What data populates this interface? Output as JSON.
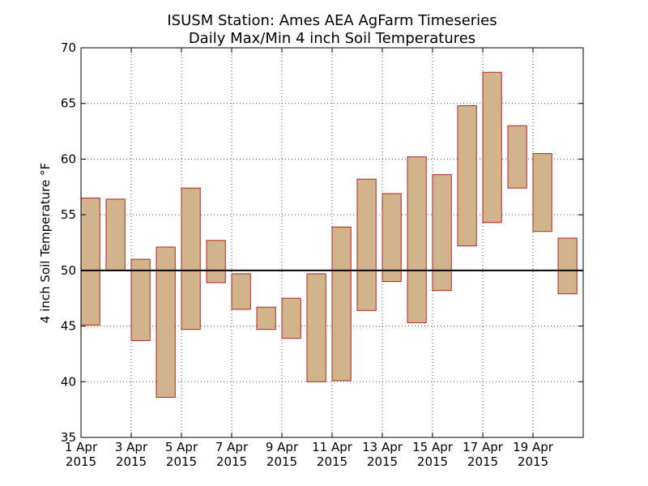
{
  "chart_data": {
    "type": "bar",
    "title_lines": [
      "ISUSM Station: Ames AEA AgFarm Timeseries",
      "Daily Max/Min 4 inch Soil Temperatures"
    ],
    "ylabel": "4 inch Soil Temperature °F",
    "xlabel": "",
    "ylim": [
      35,
      70
    ],
    "yticks": [
      35,
      40,
      45,
      50,
      55,
      60,
      65,
      70
    ],
    "xlim": [
      0,
      20
    ],
    "xticks": [
      {
        "x": 0,
        "line1": "1 Apr",
        "line2": "2015"
      },
      {
        "x": 2,
        "line1": "3 Apr",
        "line2": "2015"
      },
      {
        "x": 4,
        "line1": "5 Apr",
        "line2": "2015"
      },
      {
        "x": 6,
        "line1": "7 Apr",
        "line2": "2015"
      },
      {
        "x": 8,
        "line1": "9 Apr",
        "line2": "2015"
      },
      {
        "x": 10,
        "line1": "11 Apr",
        "line2": "2015"
      },
      {
        "x": 12,
        "line1": "13 Apr",
        "line2": "2015"
      },
      {
        "x": 14,
        "line1": "15 Apr",
        "line2": "2015"
      },
      {
        "x": 16,
        "line1": "17 Apr",
        "line2": "2015"
      },
      {
        "x": 18,
        "line1": "19 Apr",
        "line2": "2015"
      }
    ],
    "reference_line": 50,
    "grid": true,
    "series": [
      {
        "values": [
          {
            "date": "2015-04-01",
            "min": 45.1,
            "max": 56.5
          },
          {
            "date": "2015-04-02",
            "min": 50.0,
            "max": 56.4
          },
          {
            "date": "2015-04-03",
            "min": 43.7,
            "max": 51.0
          },
          {
            "date": "2015-04-04",
            "min": 38.6,
            "max": 52.1
          },
          {
            "date": "2015-04-05",
            "min": 44.7,
            "max": 57.4
          },
          {
            "date": "2015-04-06",
            "min": 48.9,
            "max": 52.7
          },
          {
            "date": "2015-04-07",
            "min": 46.5,
            "max": 49.7
          },
          {
            "date": "2015-04-08",
            "min": 44.7,
            "max": 46.7
          },
          {
            "date": "2015-04-09",
            "min": 43.9,
            "max": 47.5
          },
          {
            "date": "2015-04-10",
            "min": 40.0,
            "max": 49.7
          },
          {
            "date": "2015-04-11",
            "min": 40.1,
            "max": 53.9
          },
          {
            "date": "2015-04-12",
            "min": 46.4,
            "max": 58.2
          },
          {
            "date": "2015-04-13",
            "min": 49.0,
            "max": 56.9
          },
          {
            "date": "2015-04-14",
            "min": 45.3,
            "max": 60.2
          },
          {
            "date": "2015-04-15",
            "min": 48.2,
            "max": 58.6
          },
          {
            "date": "2015-04-16",
            "min": 52.2,
            "max": 64.8
          },
          {
            "date": "2015-04-17",
            "min": 54.3,
            "max": 67.8
          },
          {
            "date": "2015-04-18",
            "min": 57.4,
            "max": 63.0
          },
          {
            "date": "2015-04-19",
            "min": 53.5,
            "max": 60.5
          },
          {
            "date": "2015-04-20",
            "min": 47.9,
            "max": 52.9
          }
        ]
      }
    ],
    "colors": {
      "bar_fill": "#d2b48c",
      "bar_edge": "#b22222",
      "reference_line": "#000000"
    }
  }
}
